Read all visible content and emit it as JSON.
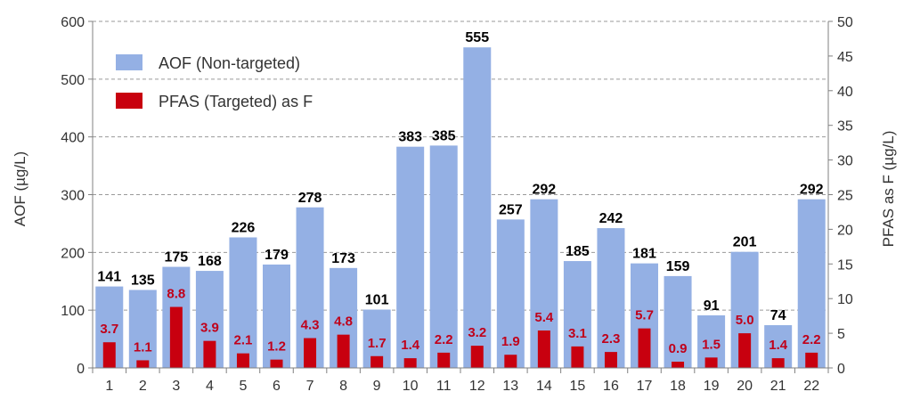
{
  "chart_data": {
    "type": "bar",
    "categories": [
      "1",
      "2",
      "3",
      "4",
      "5",
      "6",
      "7",
      "8",
      "9",
      "10",
      "11",
      "12",
      "13",
      "14",
      "15",
      "16",
      "17",
      "18",
      "19",
      "20",
      "21",
      "22"
    ],
    "series": [
      {
        "name": "AOF (Non-targeted)",
        "axis": "left",
        "color": "#94b0e4",
        "values": [
          141,
          135,
          175,
          168,
          226,
          179,
          278,
          173,
          101,
          383,
          385,
          555,
          257,
          292,
          185,
          242,
          181,
          159,
          91,
          201,
          74,
          292
        ],
        "labels": [
          "141",
          "135",
          "175",
          "168",
          "226",
          "179",
          "278",
          "173",
          "101",
          "383",
          "385",
          "555",
          "257",
          "292",
          "185",
          "242",
          "181",
          "159",
          "91",
          "201",
          "74",
          "292"
        ]
      },
      {
        "name": "PFAS (Targeted) as F",
        "axis": "right",
        "color": "#c8000f",
        "values": [
          3.7,
          1.1,
          8.8,
          3.9,
          2.1,
          1.2,
          4.3,
          4.8,
          1.7,
          1.4,
          2.2,
          3.2,
          1.9,
          5.4,
          3.1,
          2.3,
          5.7,
          0.9,
          1.5,
          5.0,
          1.4,
          2.2
        ],
        "labels": [
          "3.7",
          "1.1",
          "8.8",
          "3.9",
          "2.1",
          "1.2",
          "4.3",
          "4.8",
          "1.7",
          "1.4",
          "2.2",
          "3.2",
          "1.9",
          "5.4",
          "3.1",
          "2.3",
          "5.7",
          "0.9",
          "1.5",
          "5.0",
          "1.4",
          "2.2"
        ]
      }
    ],
    "ylabel": "AOF (µg/L)",
    "y2label": "PFAS as F (µg/L)",
    "ylim": [
      0,
      600
    ],
    "y2lim": [
      0,
      50
    ],
    "yticks": [
      "0",
      "100",
      "200",
      "300",
      "400",
      "500",
      "600"
    ],
    "y2ticks": [
      "0",
      "5",
      "10",
      "15",
      "20",
      "25",
      "30",
      "35",
      "40",
      "45",
      "50"
    ],
    "grid": "horizontal dashed",
    "legend_position": "top-left"
  }
}
